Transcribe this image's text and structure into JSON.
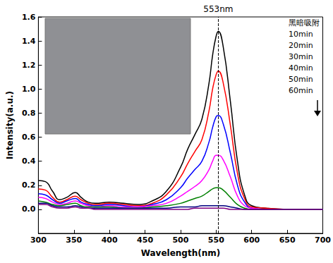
{
  "chart_data": {
    "type": "line",
    "x_label": "Wavelength(nm)",
    "y_label": "Intensity(a.u.)",
    "xlim": [
      300,
      700
    ],
    "xticks": [
      300,
      350,
      400,
      450,
      500,
      550,
      600,
      650,
      700
    ],
    "ylim": [
      -0.2,
      1.6
    ],
    "yticks": [
      {
        "value": 0,
        "label": "0.0"
      },
      {
        "value": 0.2,
        "label": "0.2"
      },
      {
        "value": 0.4,
        "label": "0.4"
      },
      {
        "value": 0.6,
        "label": "0.6"
      },
      {
        "value": 0.8,
        "label": "0.8"
      },
      {
        "value": 1.0,
        "label": "1.0"
      },
      {
        "value": 1.2,
        "label": "1.2"
      },
      {
        "value": 1.4,
        "label": "1.4"
      },
      {
        "value": 1.6,
        "label": "1.6"
      }
    ],
    "grid": false,
    "legend": "top-right",
    "annotation": {
      "text": "553nm",
      "x": 553,
      "line_style": "dashed"
    },
    "x": [
      300,
      310,
      320,
      330,
      340,
      352,
      360,
      370,
      380,
      400,
      420,
      440,
      460,
      480,
      500,
      510,
      520,
      530,
      540,
      545,
      550,
      553,
      560,
      570,
      580,
      590,
      600,
      620,
      650,
      700
    ],
    "series": [
      {
        "name": "黑暗吸附",
        "color": "#000000",
        "values": [
          0.24,
          0.23,
          0.15,
          0.08,
          0.1,
          0.14,
          0.1,
          0.06,
          0.05,
          0.06,
          0.05,
          0.04,
          0.07,
          0.15,
          0.35,
          0.5,
          0.62,
          0.75,
          1.05,
          1.28,
          1.44,
          1.48,
          1.35,
          0.9,
          0.4,
          0.12,
          0.03,
          0.01,
          0.0,
          0.0
        ]
      },
      {
        "name": "10min",
        "color": "#ff0000",
        "values": [
          0.17,
          0.16,
          0.1,
          0.06,
          0.08,
          0.11,
          0.08,
          0.05,
          0.04,
          0.05,
          0.04,
          0.03,
          0.05,
          0.12,
          0.27,
          0.38,
          0.48,
          0.58,
          0.82,
          1.0,
          1.12,
          1.15,
          1.05,
          0.7,
          0.3,
          0.09,
          0.02,
          0.01,
          0.0,
          0.0
        ]
      },
      {
        "name": "20min",
        "color": "#0000ff",
        "values": [
          0.13,
          0.12,
          0.08,
          0.05,
          0.07,
          0.09,
          0.06,
          0.04,
          0.03,
          0.04,
          0.03,
          0.02,
          0.04,
          0.08,
          0.18,
          0.26,
          0.33,
          0.4,
          0.56,
          0.68,
          0.77,
          0.78,
          0.71,
          0.47,
          0.2,
          0.06,
          0.01,
          0.0,
          0.0,
          0.0
        ]
      },
      {
        "name": "30min",
        "color": "#ff00ff",
        "values": [
          0.1,
          0.09,
          0.06,
          0.04,
          0.05,
          0.07,
          0.05,
          0.03,
          0.02,
          0.03,
          0.02,
          0.02,
          0.03,
          0.05,
          0.11,
          0.15,
          0.19,
          0.24,
          0.33,
          0.4,
          0.45,
          0.45,
          0.41,
          0.27,
          0.11,
          0.03,
          0.01,
          0.0,
          0.0,
          0.0
        ]
      },
      {
        "name": "40min",
        "color": "#008000",
        "values": [
          0.07,
          0.06,
          0.04,
          0.03,
          0.04,
          0.05,
          0.03,
          0.02,
          0.02,
          0.02,
          0.01,
          0.01,
          0.02,
          0.03,
          0.05,
          0.07,
          0.09,
          0.11,
          0.15,
          0.17,
          0.18,
          0.18,
          0.16,
          0.1,
          0.04,
          0.01,
          0.0,
          0.0,
          0.0,
          0.0
        ]
      },
      {
        "name": "50min",
        "color": "#000080",
        "values": [
          0.05,
          0.05,
          0.03,
          0.02,
          0.02,
          0.03,
          0.02,
          0.01,
          0.01,
          0.01,
          0.01,
          0.01,
          0.01,
          0.01,
          0.02,
          0.02,
          0.02,
          0.03,
          0.03,
          0.03,
          0.03,
          0.03,
          0.03,
          0.02,
          0.01,
          0.0,
          0.0,
          0.0,
          0.0,
          0.0
        ]
      },
      {
        "name": "60min",
        "color": "#800080",
        "values": [
          0.04,
          0.04,
          0.02,
          0.01,
          0.01,
          0.02,
          0.01,
          0.01,
          0.0,
          0.0,
          0.0,
          0.0,
          0.0,
          0.0,
          0.0,
          0.0,
          0.01,
          0.01,
          0.01,
          0.01,
          0.01,
          0.01,
          0.01,
          0.0,
          0.0,
          0.0,
          0.0,
          0.0,
          0.0,
          0.0
        ]
      }
    ]
  }
}
